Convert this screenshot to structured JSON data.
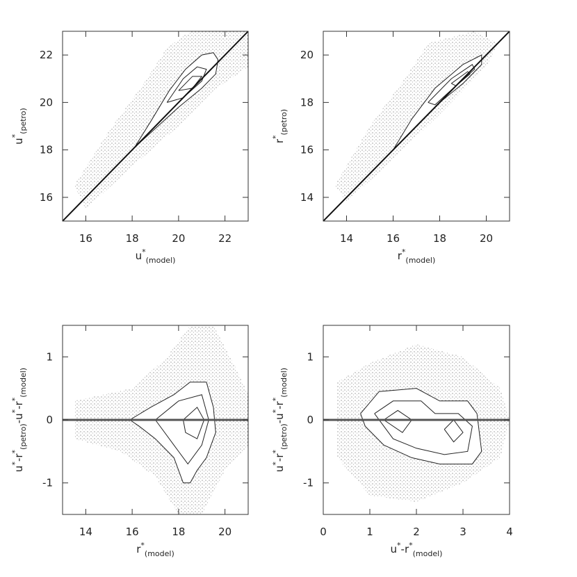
{
  "chart_data": [
    {
      "type": "scatter",
      "xlabel": [
        {
          "text": "u",
          "pos": "base"
        },
        {
          "text": "*",
          "pos": "sup"
        },
        {
          "text": "(model)",
          "pos": "sub"
        }
      ],
      "ylabel": [
        {
          "text": "u",
          "pos": "base"
        },
        {
          "text": "*",
          "pos": "sup"
        },
        {
          "text": "(petro)",
          "pos": "sub"
        }
      ],
      "xlim": [
        15,
        23
      ],
      "ylim": [
        15,
        23
      ],
      "xticks": [
        16,
        18,
        20,
        22
      ],
      "yticks": [
        16,
        18,
        20,
        22
      ],
      "lines": [
        {
          "x": [
            15,
            23
          ],
          "y": [
            15,
            23
          ]
        }
      ],
      "cloud": {
        "x": [
          15.5,
          17,
          18.5,
          19.5,
          20.5,
          23,
          23,
          21.5,
          20,
          18,
          16
        ],
        "y": [
          16.5,
          18.8,
          20.8,
          22.3,
          23,
          23,
          21.5,
          20.5,
          19,
          17.3,
          15.5
        ]
      },
      "contours": [
        {
          "x": [
            18.1,
            18.8,
            19.6,
            20.3,
            21,
            21.5,
            21.7,
            21.6,
            21,
            20,
            19,
            18.1
          ],
          "y": [
            18.1,
            19.2,
            20.5,
            21.4,
            22,
            22.1,
            21.8,
            21.2,
            20.6,
            19.8,
            18.9,
            18.1
          ]
        },
        {
          "x": [
            19.5,
            20.2,
            20.8,
            21.2,
            21,
            20.2,
            19.5
          ],
          "y": [
            20,
            21,
            21.5,
            21.4,
            20.9,
            20.2,
            20
          ]
        },
        {
          "x": [
            20,
            20.6,
            21,
            20.6,
            20
          ],
          "y": [
            20.5,
            21.1,
            21.1,
            20.6,
            20.5
          ]
        }
      ]
    },
    {
      "type": "scatter",
      "xlabel": [
        {
          "text": "r",
          "pos": "base"
        },
        {
          "text": "*",
          "pos": "sup"
        },
        {
          "text": "(model)",
          "pos": "sub"
        }
      ],
      "ylabel": [
        {
          "text": "r",
          "pos": "base"
        },
        {
          "text": "*",
          "pos": "sup"
        },
        {
          "text": "(petro)",
          "pos": "sub"
        }
      ],
      "xlim": [
        13,
        21
      ],
      "ylim": [
        13,
        21
      ],
      "xticks": [
        14,
        16,
        18,
        20
      ],
      "yticks": [
        14,
        16,
        18,
        20
      ],
      "lines": [
        {
          "x": [
            13,
            21
          ],
          "y": [
            13,
            21
          ]
        }
      ],
      "cloud": {
        "x": [
          13.5,
          15,
          16.5,
          17.5,
          19.5,
          20.5,
          20,
          18,
          16,
          14
        ],
        "y": [
          14.5,
          17,
          19,
          20.5,
          21,
          20.5,
          19.5,
          17.5,
          15.6,
          13.8
        ]
      },
      "contours": [
        {
          "x": [
            16,
            16.8,
            17.8,
            19,
            19.8,
            19.8,
            19,
            18,
            17,
            16
          ],
          "y": [
            16,
            17.3,
            18.6,
            19.6,
            20,
            19.6,
            18.8,
            18,
            17,
            16
          ]
        },
        {
          "x": [
            17.5,
            18.5,
            19.4,
            19.5,
            18.8,
            17.8,
            17.5
          ],
          "y": [
            18,
            19,
            19.6,
            19.4,
            18.8,
            17.9,
            18
          ]
        },
        {
          "x": [
            18.5,
            19.2,
            19.3,
            18.7,
            18.5
          ],
          "y": [
            18.8,
            19.3,
            19.2,
            18.7,
            18.8
          ]
        }
      ]
    },
    {
      "type": "scatter",
      "xlabel": [
        {
          "text": "r",
          "pos": "base"
        },
        {
          "text": "*",
          "pos": "sup"
        },
        {
          "text": "(model)",
          "pos": "sub"
        }
      ],
      "ylabel": [
        {
          "text": "u",
          "pos": "base"
        },
        {
          "text": "*",
          "pos": "sup"
        },
        {
          "text": "-r",
          "pos": "base"
        },
        {
          "text": "*",
          "pos": "sup"
        },
        {
          "text": "(petro)",
          "pos": "sub"
        },
        {
          "text": "-u",
          "pos": "base"
        },
        {
          "text": "*",
          "pos": "sup"
        },
        {
          "text": "-r",
          "pos": "base"
        },
        {
          "text": "*",
          "pos": "sup"
        },
        {
          "text": "(model)",
          "pos": "sub"
        }
      ],
      "xlim": [
        13,
        21
      ],
      "ylim": [
        -1.5,
        1.5
      ],
      "xticks": [
        14,
        16,
        18,
        20
      ],
      "yticks": [
        -1,
        0,
        1
      ],
      "lines": [
        {
          "x": [
            13,
            21
          ],
          "y": [
            0,
            0
          ]
        }
      ],
      "cloud": {
        "x": [
          13.5,
          16,
          17.5,
          18.5,
          19.5,
          20.5,
          21,
          21,
          20,
          19,
          18,
          17,
          15.5,
          13.5
        ],
        "y": [
          0.3,
          0.5,
          1,
          1.5,
          1.5,
          0.8,
          0.4,
          -0.4,
          -0.8,
          -1.5,
          -1.5,
          -0.9,
          -0.5,
          -0.3
        ]
      },
      "contours": [
        {
          "x": [
            15.9,
            16.8,
            17.8,
            18.5,
            19.2,
            19.5,
            19.6,
            19.2,
            18.8,
            18.5,
            18.2,
            17.8,
            17,
            16.3,
            15.9
          ],
          "y": [
            0,
            0.2,
            0.4,
            0.6,
            0.6,
            0.2,
            -0.2,
            -0.6,
            -0.8,
            -1.0,
            -1.0,
            -0.6,
            -0.3,
            -0.1,
            0
          ]
        },
        {
          "x": [
            17,
            18,
            19,
            19.3,
            19,
            18.4,
            17.8,
            17
          ],
          "y": [
            0,
            0.3,
            0.4,
            0,
            -0.4,
            -0.7,
            -0.4,
            0
          ]
        },
        {
          "x": [
            18.2,
            18.8,
            19.1,
            18.8,
            18.3,
            18.2
          ],
          "y": [
            0,
            0.2,
            0,
            -0.3,
            -0.2,
            0
          ]
        }
      ]
    },
    {
      "type": "scatter",
      "xlabel": [
        {
          "text": "u",
          "pos": "base"
        },
        {
          "text": "*",
          "pos": "sup"
        },
        {
          "text": "-r",
          "pos": "base"
        },
        {
          "text": "*",
          "pos": "sup"
        },
        {
          "text": "(model)",
          "pos": "sub"
        }
      ],
      "ylabel": [
        {
          "text": "u",
          "pos": "base"
        },
        {
          "text": "*",
          "pos": "sup"
        },
        {
          "text": "-r",
          "pos": "base"
        },
        {
          "text": "*",
          "pos": "sup"
        },
        {
          "text": "(petro)",
          "pos": "sub"
        },
        {
          "text": "-u",
          "pos": "base"
        },
        {
          "text": "*",
          "pos": "sup"
        },
        {
          "text": "-r",
          "pos": "base"
        },
        {
          "text": "*",
          "pos": "sup"
        },
        {
          "text": "(model)",
          "pos": "sub"
        }
      ],
      "xlim": [
        0,
        4
      ],
      "ylim": [
        -1.5,
        1.5
      ],
      "xticks": [
        0,
        1,
        2,
        3,
        4
      ],
      "yticks": [
        -1,
        0,
        1
      ],
      "lines": [
        {
          "x": [
            0,
            4
          ],
          "y": [
            0,
            0
          ]
        }
      ],
      "cloud": {
        "x": [
          0.3,
          1,
          2,
          3,
          3.8,
          4,
          3.8,
          3,
          2,
          1,
          0.3
        ],
        "y": [
          0.6,
          0.9,
          1.2,
          1,
          0.5,
          0,
          -0.6,
          -1,
          -1.3,
          -1.2,
          -0.6
        ]
      },
      "contours": [
        {
          "x": [
            0.8,
            1.2,
            2,
            2.5,
            3.1,
            3.3,
            3.4,
            3.2,
            2.5,
            1.9,
            1.3,
            0.9,
            0.8
          ],
          "y": [
            0.1,
            0.45,
            0.5,
            0.3,
            0.3,
            0.1,
            -0.5,
            -0.7,
            -0.7,
            -0.6,
            -0.4,
            -0.1,
            0.1
          ]
        },
        {
          "x": [
            1.1,
            1.5,
            2.1,
            2.4,
            2.9,
            3.2,
            3.1,
            2.6,
            2,
            1.5,
            1.1
          ],
          "y": [
            0.1,
            0.3,
            0.3,
            0.1,
            0.1,
            -0.1,
            -0.5,
            -0.55,
            -0.45,
            -0.3,
            0.1
          ]
        },
        {
          "x": [
            1.3,
            1.6,
            1.9,
            1.7,
            1.3
          ],
          "y": [
            0,
            0.15,
            0,
            -0.2,
            0
          ]
        },
        {
          "x": [
            2.6,
            2.8,
            3.0,
            2.8,
            2.6
          ],
          "y": [
            -0.15,
            0,
            -0.2,
            -0.35,
            -0.15
          ]
        }
      ]
    }
  ]
}
